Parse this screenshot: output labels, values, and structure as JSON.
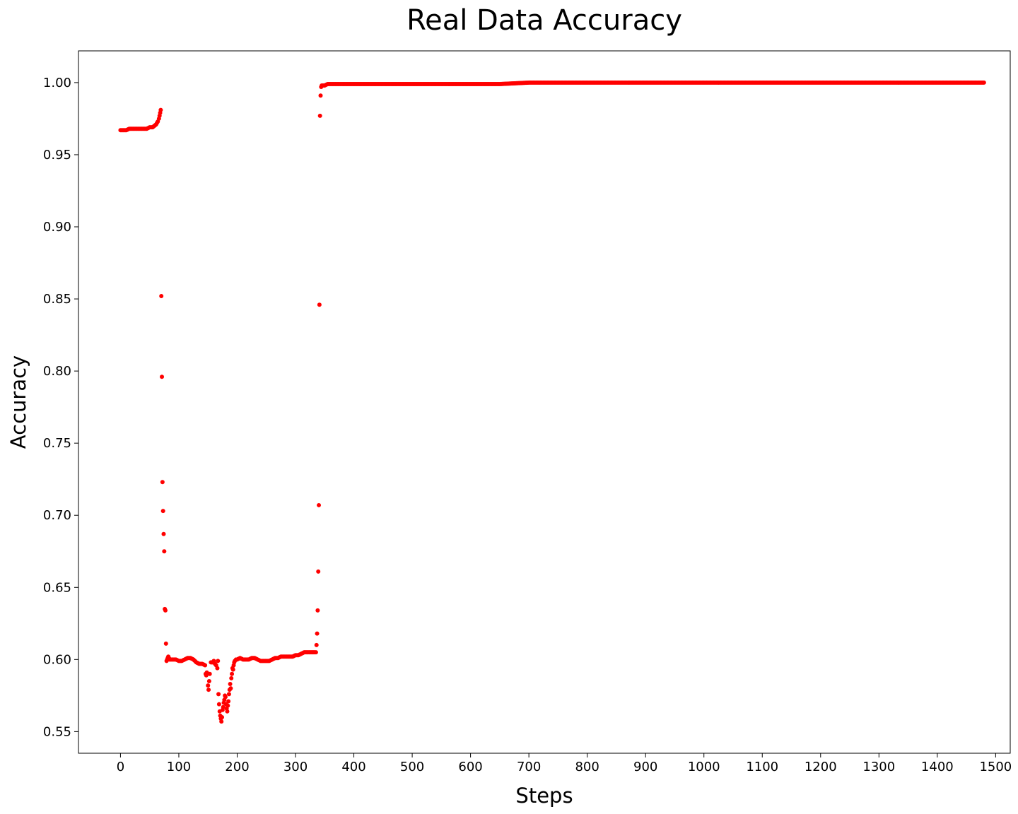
{
  "chart_data": {
    "type": "scatter",
    "title": "Real Data Accuracy",
    "xlabel": "Steps",
    "ylabel": "Accuracy",
    "xlim": [
      -72,
      1525
    ],
    "ylim": [
      0.535,
      1.022
    ],
    "xticks": [
      0,
      100,
      200,
      300,
      400,
      500,
      600,
      700,
      800,
      900,
      1000,
      1100,
      1200,
      1300,
      1400,
      1500
    ],
    "xtick_labels": [
      "0",
      "100",
      "200",
      "300",
      "400",
      "500",
      "600",
      "700",
      "800",
      "900",
      "1000",
      "1100",
      "1200",
      "1300",
      "1400",
      "1500"
    ],
    "yticks": [
      0.55,
      0.6,
      0.65,
      0.7,
      0.75,
      0.8,
      0.85,
      0.9,
      0.95,
      1.0
    ],
    "ytick_labels": [
      "0.55",
      "0.60",
      "0.65",
      "0.70",
      "0.75",
      "0.80",
      "0.85",
      "0.90",
      "0.95",
      "1.00"
    ],
    "grid": false,
    "marker_color": "#ff0000",
    "series": [
      {
        "x": [
          0,
          5,
          10,
          15,
          20,
          25,
          30,
          35,
          40,
          45,
          50,
          55,
          58,
          61,
          64,
          66,
          67,
          68,
          69,
          70,
          71,
          72,
          73,
          74,
          75,
          76,
          77,
          78,
          79,
          80,
          81,
          82,
          83,
          84,
          85,
          90,
          95,
          100,
          105,
          110,
          115,
          120,
          125,
          130,
          135,
          140,
          145,
          146,
          147,
          148,
          149,
          150,
          151,
          152,
          153,
          155,
          158,
          160,
          162,
          164,
          166,
          167,
          168,
          169,
          170,
          171,
          172,
          173,
          174,
          175,
          176,
          177,
          178,
          179,
          180,
          181,
          182,
          183,
          184,
          185,
          186,
          187,
          188,
          189,
          190,
          191,
          192,
          193,
          194,
          195,
          196,
          198,
          200,
          205,
          210,
          215,
          220,
          225,
          230,
          235,
          240,
          245,
          250,
          255,
          260,
          265,
          270,
          275,
          280,
          285,
          290,
          295,
          300,
          305,
          310,
          315,
          320,
          325,
          330,
          333,
          335,
          336,
          337,
          338,
          339,
          340,
          341,
          342,
          343,
          344,
          345,
          347,
          350,
          355,
          360,
          365,
          370,
          380,
          400,
          450,
          500,
          550,
          600,
          650,
          700,
          750,
          800,
          850,
          900,
          950,
          1000,
          1050,
          1100,
          1150,
          1200,
          1250,
          1300,
          1350,
          1400,
          1450,
          1480
        ],
        "y": [
          0.967,
          0.967,
          0.967,
          0.968,
          0.968,
          0.968,
          0.968,
          0.968,
          0.968,
          0.968,
          0.969,
          0.969,
          0.97,
          0.971,
          0.973,
          0.975,
          0.977,
          0.979,
          0.981,
          0.852,
          0.796,
          0.723,
          0.703,
          0.687,
          0.675,
          0.635,
          0.634,
          0.611,
          0.599,
          0.6,
          0.601,
          0.602,
          0.601,
          0.6,
          0.6,
          0.6,
          0.6,
          0.599,
          0.599,
          0.6,
          0.601,
          0.601,
          0.6,
          0.598,
          0.597,
          0.597,
          0.596,
          0.59,
          0.589,
          0.591,
          0.59,
          0.582,
          0.579,
          0.585,
          0.59,
          0.598,
          0.598,
          0.599,
          0.597,
          0.596,
          0.594,
          0.599,
          0.576,
          0.569,
          0.564,
          0.561,
          0.559,
          0.557,
          0.56,
          0.565,
          0.567,
          0.57,
          0.572,
          0.575,
          0.574,
          0.569,
          0.566,
          0.564,
          0.568,
          0.571,
          0.576,
          0.579,
          0.583,
          0.58,
          0.587,
          0.59,
          0.594,
          0.593,
          0.596,
          0.598,
          0.599,
          0.6,
          0.6,
          0.601,
          0.6,
          0.6,
          0.6,
          0.601,
          0.601,
          0.6,
          0.599,
          0.599,
          0.599,
          0.599,
          0.6,
          0.601,
          0.601,
          0.602,
          0.602,
          0.602,
          0.602,
          0.602,
          0.603,
          0.603,
          0.604,
          0.605,
          0.605,
          0.605,
          0.605,
          0.605,
          0.605,
          0.61,
          0.618,
          0.634,
          0.661,
          0.707,
          0.846,
          0.977,
          0.991,
          0.997,
          0.998,
          0.998,
          0.998,
          0.999,
          0.999,
          0.999,
          0.999,
          0.999,
          0.999,
          0.999,
          0.999,
          0.999,
          0.999,
          0.999,
          1.0,
          1.0,
          1.0,
          1.0,
          1.0,
          1.0,
          1.0,
          1.0,
          1.0,
          1.0,
          1.0,
          1.0,
          1.0,
          1.0,
          1.0,
          1.0,
          1.0
        ]
      }
    ]
  }
}
